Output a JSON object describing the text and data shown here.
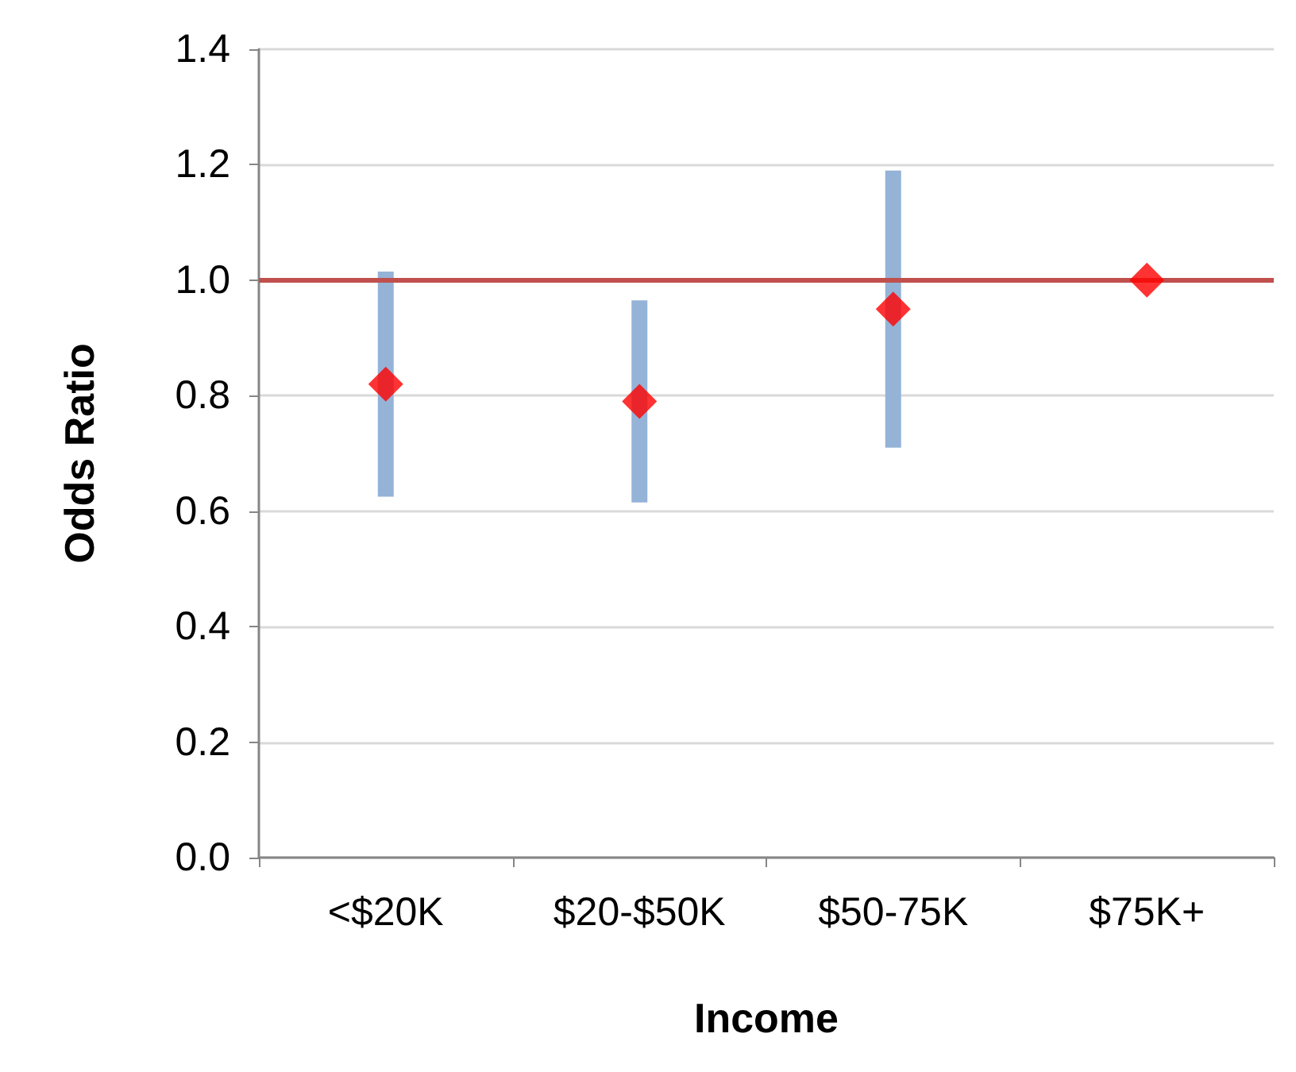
{
  "chart_data": {
    "type": "scatter",
    "xlabel": "Income",
    "ylabel": "Odds Ratio",
    "categories": [
      "<$20K",
      "$20-$50K",
      "$50-75K",
      "$75K+"
    ],
    "series": [
      {
        "color": "#ff0000",
        "values": [
          0.82,
          0.79,
          0.95,
          1.0
        ],
        "errors": [
          [
            0.625,
            1.015
          ],
          [
            0.615,
            0.965
          ],
          [
            0.71,
            1.19
          ],
          null
        ]
      }
    ],
    "ylim": [
      0,
      1.4
    ],
    "yticks": [
      {
        "value": 0,
        "label": "0.0"
      },
      0.2,
      0.4,
      0.6,
      0.8,
      {
        "value": 1,
        "label": "1.0"
      },
      1.2,
      1.4
    ],
    "ref_lines": [
      {
        "axis": "y",
        "value": 1.0,
        "color": "#c0504d",
        "line_style": "solid"
      }
    ],
    "grid": "y",
    "marker": "diamond"
  }
}
